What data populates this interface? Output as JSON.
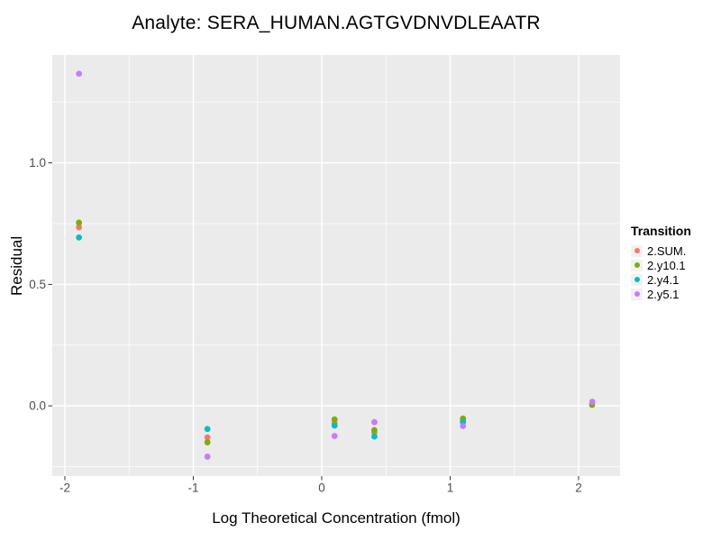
{
  "chart_data": {
    "type": "scatter",
    "title": "Analyte: SERA_HUMAN.AGTGVDNVDLEAATR",
    "xlabel": "Log Theoretical Concentration (fmol)",
    "ylabel": "Residual",
    "legend_title": "Transition",
    "legend_position": "right",
    "panel_bg": "#EBEBEB",
    "grid_color": "#FFFFFF",
    "tick_label_color": "#4D4D4D",
    "tick_mark_color": "#333333",
    "grid": true,
    "xlim": [
      -2.098,
      2.323
    ],
    "ylim": [
      -0.289,
      1.444
    ],
    "x_ticks": {
      "values": [
        -2,
        -1,
        0,
        1,
        2
      ],
      "labels": [
        "-2",
        "-1",
        "0",
        "1",
        "2"
      ]
    },
    "y_ticks": {
      "values": [
        0.0,
        0.5,
        1.0
      ],
      "labels": [
        "0.0",
        "0.5",
        "1.0"
      ]
    },
    "x_minor": [
      -1.5,
      -0.5,
      0.5,
      1.5
    ],
    "y_minor": [
      -0.25,
      0.25,
      0.75,
      1.25
    ],
    "point_radius_px": 3.4,
    "series": [
      {
        "name": "2.SUM.",
        "color": "#F8766D",
        "points": [
          [
            -1.89,
            0.735
          ],
          [
            -0.89,
            -0.13
          ],
          [
            0.1,
            -0.071
          ],
          [
            0.41,
            -0.109
          ],
          [
            1.1,
            -0.059
          ]
        ]
      },
      {
        "name": "2.y10.1",
        "color": "#7CAE00",
        "points": [
          [
            -1.89,
            0.754
          ],
          [
            -0.89,
            -0.15
          ],
          [
            0.1,
            -0.056
          ],
          [
            0.41,
            -0.1
          ],
          [
            1.1,
            -0.052
          ],
          [
            2.105,
            0.004
          ]
        ]
      },
      {
        "name": "2.y4.1",
        "color": "#00BFC4",
        "points": [
          [
            -1.89,
            0.693
          ],
          [
            -0.89,
            -0.095
          ],
          [
            0.1,
            -0.081
          ],
          [
            0.41,
            -0.126
          ],
          [
            1.1,
            -0.067
          ]
        ]
      },
      {
        "name": "2.y5.1",
        "color": "#C77CFF",
        "points": [
          [
            -1.89,
            1.367
          ],
          [
            -0.89,
            -0.209
          ],
          [
            0.1,
            -0.124
          ],
          [
            0.41,
            -0.067
          ],
          [
            1.1,
            -0.083
          ],
          [
            2.107,
            0.017
          ]
        ]
      }
    ]
  }
}
